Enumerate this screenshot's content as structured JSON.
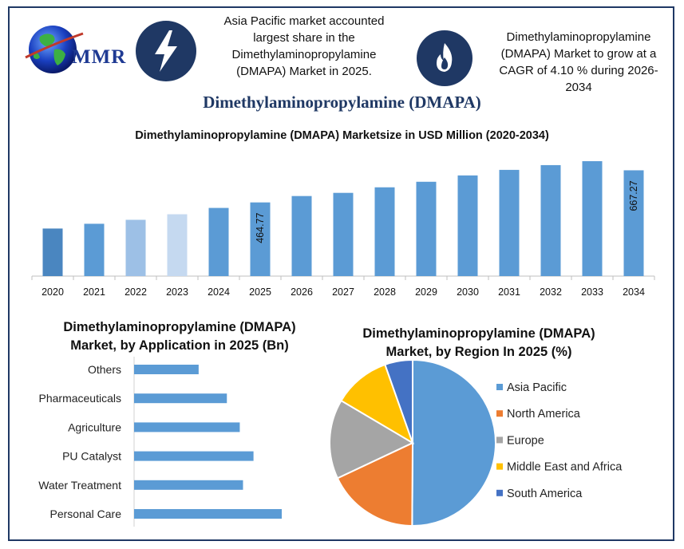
{
  "header": {
    "logo_text": "MMR",
    "note_left": [
      "Asia Pacific market accounted",
      "largest share in the",
      "Dimethylaminopropylamine",
      "(DMAPA) Market in 2025."
    ],
    "note_right": [
      "Dimethylaminopropylamine",
      "(DMAPA) Market to grow at a",
      "CAGR of  4.10 % during 2026-",
      "2034"
    ],
    "icons": {
      "left": "lightning-icon",
      "right": "flame-icon",
      "logo": "globe-icon"
    },
    "main_title": "Dimethylaminopropylamine (DMAPA)"
  },
  "colors": {
    "frame": "#1f3864",
    "bar": "#5b9bd5",
    "title": "#1f3864"
  },
  "chart_data": [
    {
      "type": "bar",
      "title": "Dimethylaminopropylamine (DMAPA) Marketsize in USD Million (2020-2034)",
      "categories": [
        "2020",
        "2021",
        "2022",
        "2023",
        "2024",
        "2025",
        "2026",
        "2027",
        "2028",
        "2029",
        "2030",
        "2031",
        "2032",
        "2033",
        "2034"
      ],
      "values": [
        300,
        330,
        355,
        390,
        430,
        464.77,
        505,
        525,
        560,
        595,
        635,
        670,
        700,
        725,
        667.27
      ],
      "bar_colors": [
        "#4a86c0",
        "#5b9bd5",
        "#9dc0e6",
        "#c5d9f0",
        "#5b9bd5",
        "#5b9bd5",
        "#5b9bd5",
        "#5b9bd5",
        "#5b9bd5",
        "#5b9bd5",
        "#5b9bd5",
        "#5b9bd5",
        "#5b9bd5",
        "#5b9bd5",
        "#5b9bd5"
      ],
      "data_labels": {
        "2025": "464.77",
        "2034": "667.27"
      },
      "grid": false
    },
    {
      "type": "bar",
      "orientation": "horizontal",
      "title": [
        "Dimethylaminopropylamine (DMAPA)",
        "Market, by Application in 2025 (Bn)"
      ],
      "categories": [
        "Others",
        "Pharmaceuticals",
        "Agriculture",
        "PU Catalyst",
        "Water Treatment",
        "Personal Care"
      ],
      "values": [
        0.8,
        1.15,
        1.31,
        1.48,
        1.35,
        1.83
      ],
      "color": "#5b9bd5"
    },
    {
      "type": "pie",
      "title": [
        "Dimethylaminopropylamine (DMAPA)",
        "Market, by Region In 2025 (%)"
      ],
      "labels": [
        "Asia Pacific",
        "North America",
        "Europe",
        "Middle East and Africa",
        "South America"
      ],
      "values": [
        50.1,
        17.9,
        15.5,
        11.1,
        5.4
      ],
      "colors": [
        "#5b9bd5",
        "#ed7d31",
        "#a5a5a5",
        "#ffc000",
        "#4472c4"
      ],
      "legend_position": "right"
    }
  ]
}
